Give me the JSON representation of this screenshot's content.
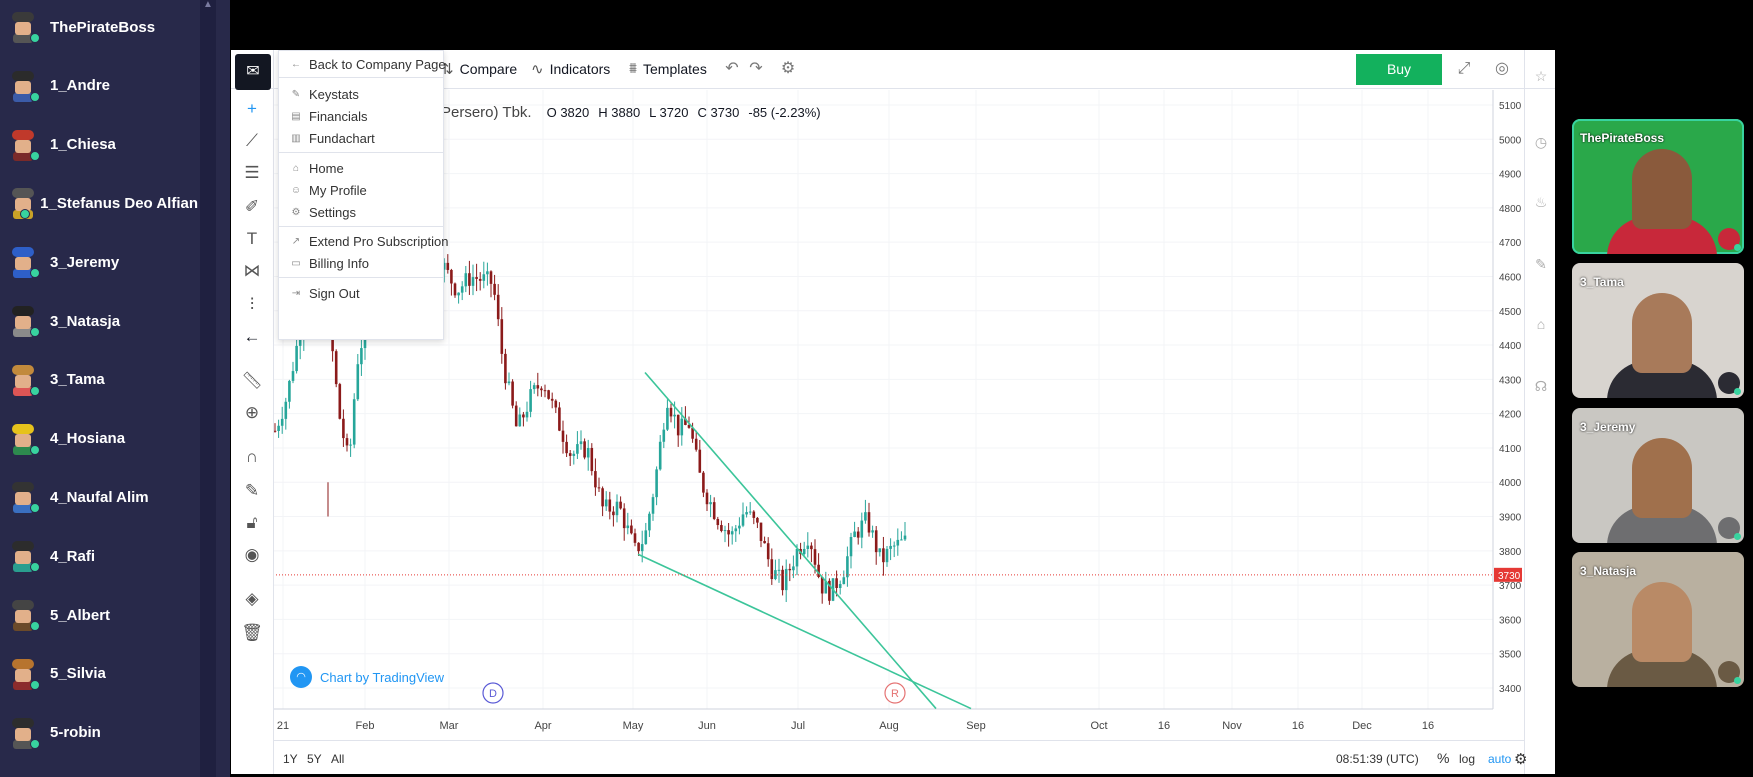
{
  "participants": [
    {
      "name": "ThePirateBoss",
      "hair": "#3a3a3a",
      "shirt": "#555"
    },
    {
      "name": "1_Andre",
      "hair": "#2b2b2b",
      "shirt": "#3b5ba8"
    },
    {
      "name": "1_Chiesa",
      "hair": "#c0392b",
      "shirt": "#7a2a2a"
    },
    {
      "name": "1_Stefanus Deo Alfian",
      "hair": "#555555",
      "shirt": "#c9a227"
    },
    {
      "name": "3_Jeremy",
      "hair": "#2e5fc8",
      "shirt": "#2e5fc8"
    },
    {
      "name": "3_Natasja",
      "hair": "#222222",
      "shirt": "#8a8a8a"
    },
    {
      "name": "3_Tama",
      "hair": "#c28a3c",
      "shirt": "#d55"
    },
    {
      "name": "4_Hosiana",
      "hair": "#e6c21c",
      "shirt": "#2d8a4e"
    },
    {
      "name": "4_Naufal Alim",
      "hair": "#333333",
      "shirt": "#3a6fc0"
    },
    {
      "name": "4_Rafi",
      "hair": "#2c2c2c",
      "shirt": "#2a9e8f"
    },
    {
      "name": "5_Albert",
      "hair": "#444444",
      "shirt": "#6b4a2a"
    },
    {
      "name": "5_Silvia",
      "hair": "#b7742e",
      "shirt": "#8b2c2c"
    },
    {
      "name": "5-robin",
      "hair": "#2d2d2d",
      "shirt": "#555"
    }
  ],
  "toolbar": {
    "compare": "Compare",
    "indicators": "Indicators",
    "templates": "Templates",
    "buy": "Buy"
  },
  "menu": {
    "back": "Back to Company Page",
    "group1": [
      "Keystats",
      "Financials",
      "Fundachart"
    ],
    "group2": [
      "Home",
      "My Profile",
      "Settings"
    ],
    "group3": [
      "Extend Pro Subscription",
      "Billing Info"
    ],
    "group4": [
      "Sign Out"
    ]
  },
  "legend": {
    "name": "Persero) Tbk.",
    "open": "O 3820",
    "high": "H 3880",
    "low": "L 3720",
    "close": "C 3730",
    "change": "-85 (-2.23%)"
  },
  "watermark": "Chart by TradingView",
  "bottom_bar": {
    "ranges": [
      "1Y",
      "5Y",
      "All"
    ],
    "clock": "08:51:39 (UTC)",
    "pct": "%",
    "log": "log",
    "auto": "auto"
  },
  "chart_data": {
    "type": "candlestick",
    "y_ticks": [
      5100,
      5000,
      4900,
      4800,
      4700,
      4600,
      4500,
      4400,
      4300,
      4200,
      4100,
      4000,
      3900,
      3800,
      3700,
      3600,
      3500,
      3400
    ],
    "ylim": [
      3340,
      5120
    ],
    "x_ticks": [
      "21",
      "Feb",
      "Mar",
      "Apr",
      "May",
      "Jun",
      "Jul",
      "Aug",
      "Sep",
      "Oct",
      "16",
      "Nov",
      "16",
      "Dec",
      "16"
    ],
    "last_price": 3730,
    "last_price_label": "3730",
    "event_markers": [
      {
        "label": "D"
      },
      {
        "label": "R"
      }
    ],
    "colors": {
      "up": "#26a69a",
      "down": "#8b1a1a",
      "trendline": "#3cc59a",
      "price_line": "#e53935"
    }
  },
  "tiles": [
    {
      "label": "ThePirateBoss",
      "bg": "#2aa84a",
      "skin": "#8a5a3c",
      "shirt": "#c8283a",
      "border": "#38d39f"
    },
    {
      "label": "3_Tama",
      "bg": "#d8d4cf",
      "skin": "#a87a5a",
      "shirt": "#2b2b33",
      "border": ""
    },
    {
      "label": "3_Jeremy",
      "bg": "#c9c7c2",
      "skin": "#a0704c",
      "shirt": "#6e6e70",
      "border": ""
    },
    {
      "label": "3_Natasja",
      "bg": "#b9b0a0",
      "skin": "#b98a66",
      "shirt": "#6a5a44",
      "border": ""
    }
  ]
}
